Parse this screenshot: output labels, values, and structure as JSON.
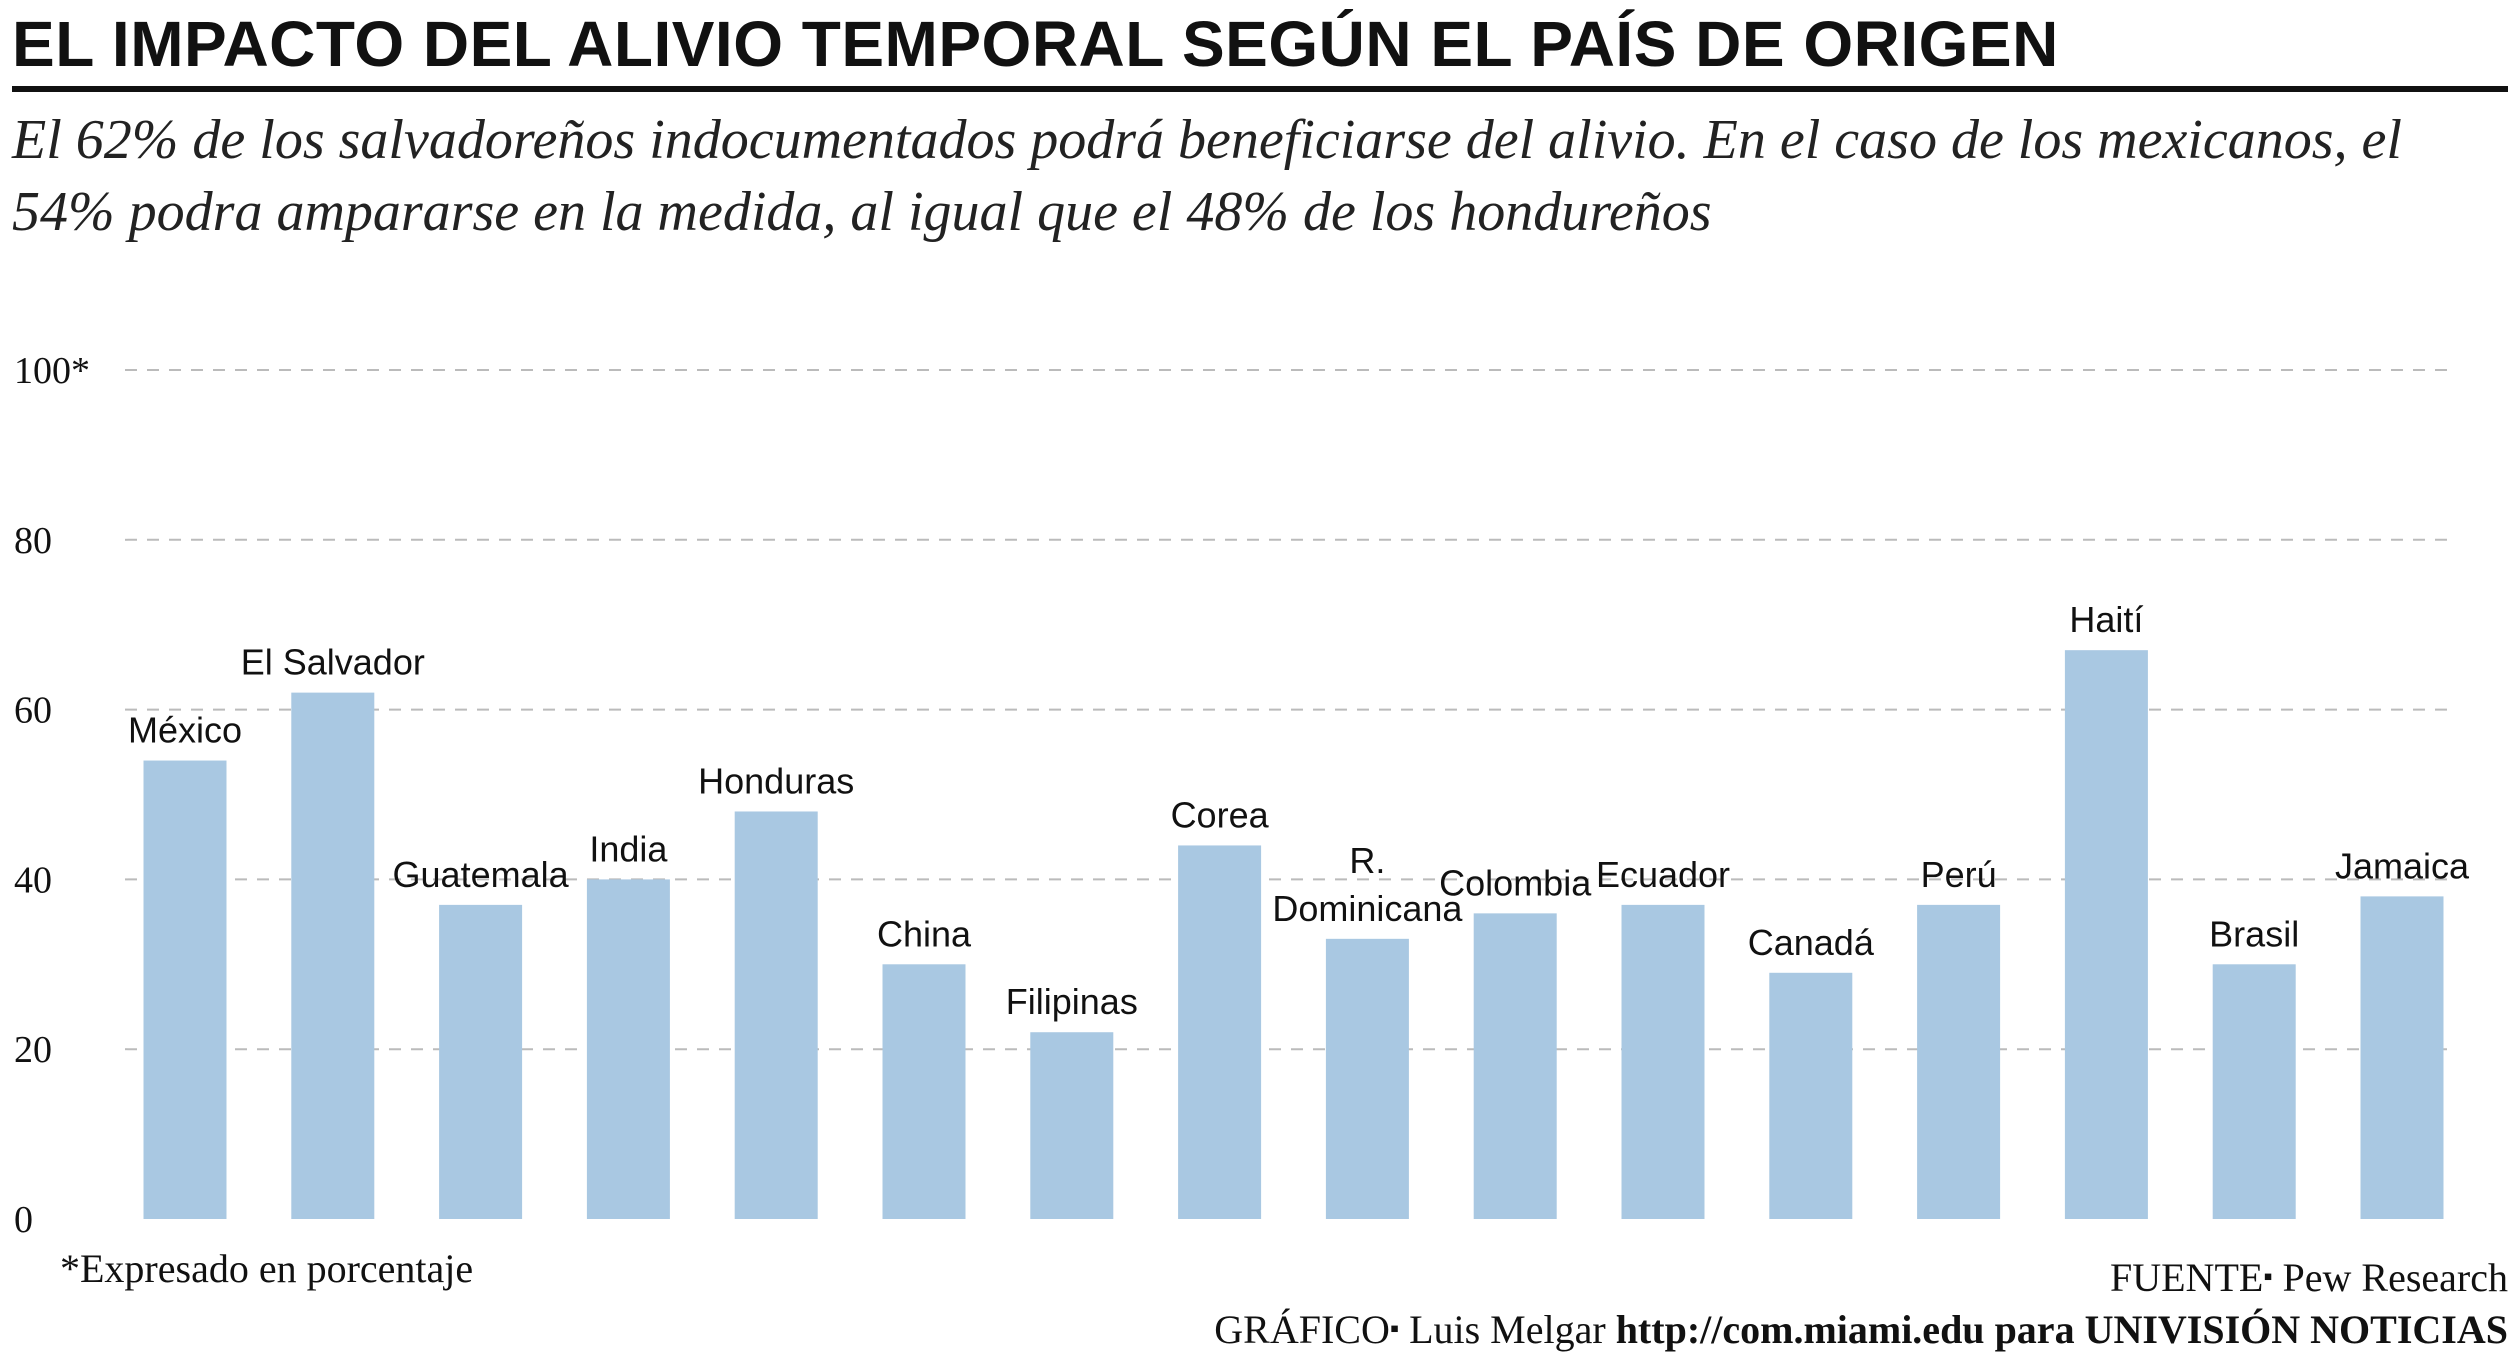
{
  "title": "EL IMPACTO DEL ALIVIO TEMPORAL SEGÚN EL PAÍS DE ORIGEN",
  "subtitle": "El 62% de los salvadoreños indocumentados podrá beneficiarse del alivio. En el caso de los mexicanos, el 54% podra ampararse en la medida, al igual que el 48% de los hondureños",
  "footnote": "*Expresado en porcentaje",
  "source": {
    "label": "FUENTE",
    "separator": "▪",
    "value": "Pew Research"
  },
  "credit": {
    "label": "GRÁFICO",
    "separator": "▪",
    "author": "Luis Melgar",
    "url": "http://com.miami.edu",
    "for_text": "para",
    "outlet": "UNIVISIÓN NOTICIAS"
  },
  "colors": {
    "bar": "#a9c8e2",
    "gridline": "#bbbbbb",
    "text": "#111111"
  },
  "chart_data": {
    "type": "bar",
    "categories": [
      "México",
      "El Salvador",
      "Guatemala",
      "India",
      "Honduras",
      "China",
      "Filipinas",
      "Corea",
      "R. Dominicana",
      "Colombia",
      "Ecuador",
      "Canadá",
      "Perú",
      "Haití",
      "Brasil",
      "Jamaica"
    ],
    "category_label_lines": [
      [
        "México"
      ],
      [
        "El Salvador"
      ],
      [
        "Guatemala"
      ],
      [
        "India"
      ],
      [
        "Honduras"
      ],
      [
        "China"
      ],
      [
        "Filipinas"
      ],
      [
        "Corea"
      ],
      [
        "R.",
        "Dominicana"
      ],
      [
        "Colombia"
      ],
      [
        "Ecuador"
      ],
      [
        "Canadá"
      ],
      [
        "Perú"
      ],
      [
        "Haití"
      ],
      [
        "Brasil"
      ],
      [
        "Jamaica"
      ]
    ],
    "values": [
      54,
      62,
      37,
      40,
      48,
      30,
      22,
      44,
      33,
      36,
      37,
      29,
      37,
      67,
      30,
      38
    ],
    "yticks": [
      0,
      20,
      40,
      60,
      80,
      100
    ],
    "ytick_labels": [
      "0",
      "20",
      "40",
      "60",
      "80",
      "100*"
    ],
    "ylim": [
      0,
      100
    ],
    "grid": true,
    "labels_above_bars": true
  }
}
